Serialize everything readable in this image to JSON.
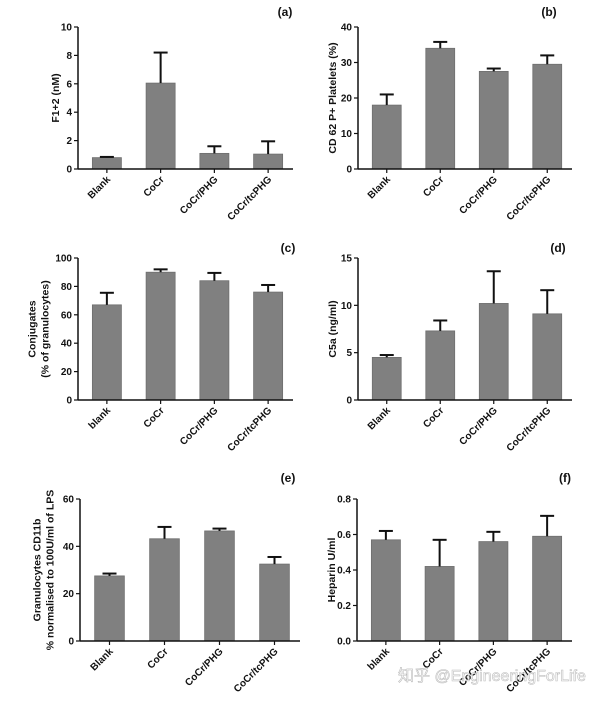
{
  "colors": {
    "bar": "#808080",
    "bar_edge": "#6e6e6e",
    "axis": "#111111",
    "error": "#111111"
  },
  "watermark": "知乎 @EngineeringForLife",
  "chart_data": [
    {
      "id": "a",
      "type": "bar",
      "panel_label": "(a)",
      "title": "",
      "xlabel": "",
      "ylabel": [
        "F1+2 (nM)"
      ],
      "categories": [
        "Blank",
        "CoCr",
        "CoCr/PHG",
        "CoCr/tcPHG"
      ],
      "values": [
        0.8,
        6.05,
        1.1,
        1.05
      ],
      "error_upper": [
        0.85,
        8.2,
        1.6,
        1.95
      ],
      "ylim": [
        0,
        10
      ],
      "yticks": [
        0,
        2,
        4,
        6,
        8,
        10
      ],
      "ytick_labels": [
        "0",
        "2",
        "4",
        "6",
        "8",
        "10"
      ],
      "grid": false
    },
    {
      "id": "b",
      "type": "bar",
      "panel_label": "(b)",
      "title": "",
      "xlabel": "",
      "ylabel": [
        "CD 62 P+ Platelets (%)"
      ],
      "categories": [
        "Blank",
        "CoCr",
        "CoCr/PHG",
        "CoCr/tcPHG"
      ],
      "values": [
        18.0,
        34.0,
        27.5,
        29.5
      ],
      "error_upper": [
        21.0,
        35.8,
        28.3,
        32.0
      ],
      "ylim": [
        0,
        40
      ],
      "yticks": [
        0,
        10,
        20,
        30,
        40
      ],
      "ytick_labels": [
        "0",
        "10",
        "20",
        "30",
        "40"
      ],
      "grid": false
    },
    {
      "id": "c",
      "type": "bar",
      "panel_label": "(c)",
      "title": "",
      "xlabel": "",
      "ylabel": [
        "Conjugates",
        "(% of granulocytes)"
      ],
      "categories": [
        "blank",
        "CoCr",
        "CoCr/PHG",
        "CoCr/tcPHG"
      ],
      "values": [
        67,
        90,
        84,
        76
      ],
      "error_upper": [
        75.5,
        92,
        89.5,
        81
      ],
      "ylim": [
        0,
        100
      ],
      "yticks": [
        0,
        20,
        40,
        60,
        80,
        100
      ],
      "ytick_labels": [
        "0",
        "20",
        "40",
        "60",
        "80",
        "100"
      ],
      "grid": false
    },
    {
      "id": "d",
      "type": "bar",
      "panel_label": "(d)",
      "title": "",
      "xlabel": "",
      "ylabel": [
        "C5a (ng/ml)"
      ],
      "categories": [
        "Blank",
        "CoCr",
        "CoCr/PHG",
        "CoCr/tcPHG"
      ],
      "values": [
        4.5,
        7.3,
        10.2,
        9.1
      ],
      "error_upper": [
        4.75,
        8.4,
        13.6,
        11.6
      ],
      "ylim": [
        0,
        15
      ],
      "yticks": [
        0,
        5,
        10,
        15
      ],
      "ytick_labels": [
        "0",
        "5",
        "10",
        "15"
      ],
      "grid": false
    },
    {
      "id": "e",
      "type": "bar",
      "panel_label": "(e)",
      "title": "",
      "xlabel": "",
      "ylabel": [
        "Granulocytes CD11b",
        "% normalised to 100U/ml of LPS"
      ],
      "categories": [
        "Blank",
        "CoCr",
        "CoCr/PHG",
        "CoCr/tcPHG"
      ],
      "values": [
        27.5,
        43.2,
        46.5,
        32.5
      ],
      "error_upper": [
        28.5,
        48.2,
        47.5,
        35.5
      ],
      "ylim": [
        0,
        60
      ],
      "yticks": [
        0,
        20,
        40,
        60
      ],
      "ytick_labels": [
        "0",
        "20",
        "40",
        "60"
      ],
      "grid": false
    },
    {
      "id": "f",
      "type": "bar",
      "panel_label": "(f)",
      "title": "",
      "xlabel": "",
      "ylabel": [
        "Heparin U/ml"
      ],
      "categories": [
        "blank",
        "CoCr",
        "CoCr/PHG",
        "CoCr/tcPHG"
      ],
      "values": [
        0.57,
        0.42,
        0.56,
        0.59
      ],
      "error_upper": [
        0.62,
        0.57,
        0.615,
        0.705
      ],
      "ylim": [
        0,
        0.8
      ],
      "yticks": [
        0,
        0.2,
        0.4,
        0.6,
        0.8
      ],
      "ytick_labels": [
        "0.0",
        "0.2",
        "0.4",
        "0.6",
        "0.8"
      ],
      "grid": false
    }
  ]
}
